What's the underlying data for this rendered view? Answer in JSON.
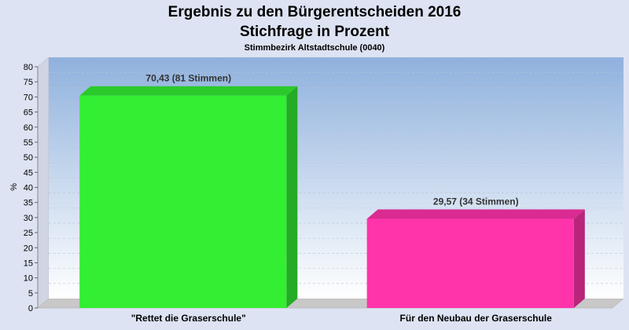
{
  "chart_data": {
    "type": "bar",
    "title": "Ergebnis zu den Bürgerentscheiden 2016",
    "subtitle": "Stichfrage in Prozent",
    "subsubtitle": "Stimmbezirk Altstadtschule (0040)",
    "ylabel": "%",
    "xlabel": "",
    "ylim": [
      0,
      80
    ],
    "ytick_step": 5,
    "yticks": [
      "0",
      "5",
      "10",
      "15",
      "20",
      "25",
      "30",
      "35",
      "40",
      "45",
      "50",
      "55",
      "60",
      "65",
      "70",
      "75",
      "80"
    ],
    "categories": [
      "\"Rettet die Graserschule\"",
      "Für den Neubau der Graserschule"
    ],
    "values": [
      70.43,
      29.57
    ],
    "data_labels": [
      "70,43 (81 Stimmen)",
      "29,57 (34 Stimmen)"
    ],
    "colors": [
      "#33ee33",
      "#ff33aa"
    ],
    "grid": true,
    "legend": "none"
  }
}
